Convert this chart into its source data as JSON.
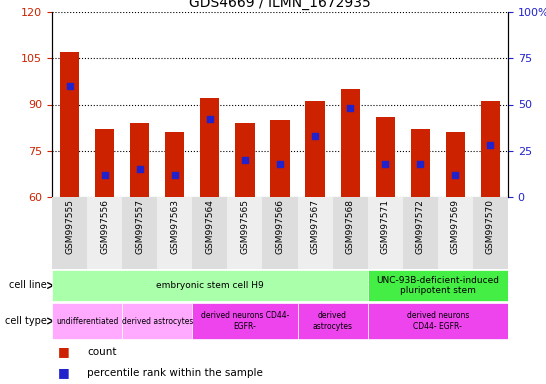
{
  "title": "GDS4669 / ILMN_1672935",
  "samples": [
    "GSM997555",
    "GSM997556",
    "GSM997557",
    "GSM997563",
    "GSM997564",
    "GSM997565",
    "GSM997566",
    "GSM997567",
    "GSM997568",
    "GSM997571",
    "GSM997572",
    "GSM997569",
    "GSM997570"
  ],
  "counts": [
    107,
    82,
    84,
    81,
    92,
    84,
    85,
    91,
    95,
    86,
    82,
    81,
    91
  ],
  "percentile_ranks": [
    60,
    12,
    15,
    12,
    42,
    20,
    18,
    33,
    48,
    18,
    18,
    12,
    28
  ],
  "ylim_left": [
    60,
    120
  ],
  "ylim_right": [
    0,
    100
  ],
  "yticks_left": [
    60,
    75,
    90,
    105,
    120
  ],
  "yticks_right": [
    0,
    25,
    50,
    75,
    100
  ],
  "bar_color": "#cc2200",
  "dot_color": "#2222cc",
  "bar_bottom": 60,
  "cell_line_groups": [
    {
      "label": "embryonic stem cell H9",
      "start": 0,
      "end": 9,
      "color": "#aaffaa"
    },
    {
      "label": "UNC-93B-deficient-induced\npluripotent stem",
      "start": 9,
      "end": 13,
      "color": "#44ee44"
    }
  ],
  "cell_type_groups": [
    {
      "label": "undifferentiated",
      "start": 0,
      "end": 2,
      "color": "#ffaaff"
    },
    {
      "label": "derived astrocytes",
      "start": 2,
      "end": 4,
      "color": "#ffaaff"
    },
    {
      "label": "derived neurons CD44-\nEGFR-",
      "start": 4,
      "end": 7,
      "color": "#ee44ee"
    },
    {
      "label": "derived\nastrocytes",
      "start": 7,
      "end": 9,
      "color": "#ee44ee"
    },
    {
      "label": "derived neurons\nCD44- EGFR-",
      "start": 9,
      "end": 13,
      "color": "#ee44ee"
    }
  ],
  "legend_count_color": "#cc2200",
  "legend_pct_color": "#2222cc"
}
